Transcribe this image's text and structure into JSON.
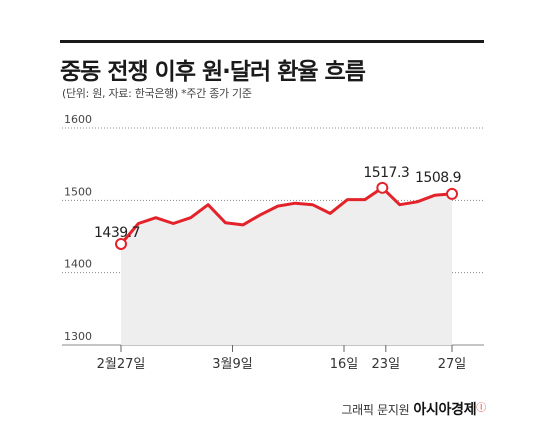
{
  "header": {
    "title": "중동 전쟁 이후 원·달러 환율 흐름",
    "subtitle": "(단위: 원, 자료: 한국은행) *주간 종가 기준"
  },
  "credit": {
    "text": "그래픽 문지원",
    "brand": "아시아경제",
    "brand_mark": "ⓛ"
  },
  "chart_data": {
    "type": "area",
    "y_ticks": [
      1300,
      1400,
      1500,
      1600
    ],
    "ylim": [
      1300,
      1600
    ],
    "x_ticks": [
      {
        "index": 0,
        "label": "2월27일"
      },
      {
        "index": 7,
        "label": "3월9일"
      },
      {
        "index": 14,
        "label": "16일"
      },
      {
        "index": 21,
        "label": "23일"
      },
      {
        "index": 26,
        "label": "27일"
      }
    ],
    "values": [
      1439.7,
      1468,
      1476,
      1468,
      1476,
      1494,
      1469,
      1466,
      1480,
      1492,
      1496,
      1494,
      1482,
      1501,
      1501,
      1517.3,
      1494,
      1498,
      1507,
      1508.9
    ],
    "value_indices": [
      0,
      1,
      2,
      3,
      4,
      5,
      6,
      7,
      8,
      9,
      10,
      11,
      12,
      13,
      14,
      15,
      16,
      17,
      18,
      19
    ],
    "x_positions": [
      0,
      1,
      2,
      3,
      4,
      5,
      6,
      7,
      8,
      9,
      10,
      11,
      12,
      13,
      14,
      15,
      16,
      17,
      18,
      19
    ],
    "annotations": [
      {
        "index": 0,
        "label": "1439.7"
      },
      {
        "index": 15,
        "label": "1517.3"
      },
      {
        "index": 19,
        "label": "1508.9"
      }
    ],
    "grid": true,
    "line_color": "#e4222a",
    "area_color": "#eeeeee"
  }
}
